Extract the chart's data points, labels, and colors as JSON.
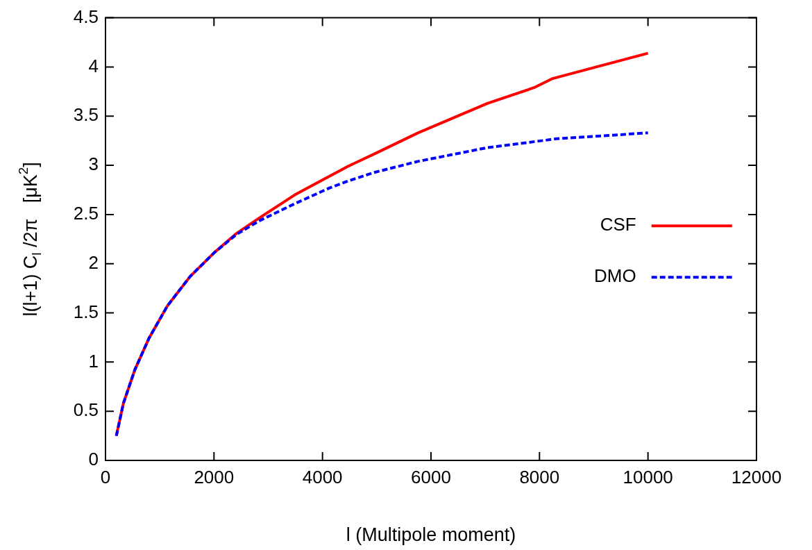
{
  "chart_data": {
    "type": "line",
    "xlabel": "l (Multipole moment)",
    "ylabel": "l(l+1) C$_{l}$ /2π   [μK$^{2}$]",
    "xlim": [
      0,
      12000
    ],
    "xticks": [
      0,
      2000,
      4000,
      6000,
      8000,
      10000,
      12000
    ],
    "ylim": [
      0,
      4.5
    ],
    "yticks": [
      0,
      0.5,
      1,
      1.5,
      2,
      2.5,
      3,
      3.5,
      4,
      4.5
    ],
    "grid": false,
    "legend": "right",
    "marker": "none",
    "series": [
      {
        "name": "CSF",
        "color": "#ff0000",
        "line_style": "solid",
        "x": [
          200,
          330,
          540,
          800,
          1140,
          1560,
          2000,
          2420,
          2850,
          3490,
          4130,
          4470,
          4970,
          5760,
          7040,
          7900,
          8230,
          9180,
          10000
        ],
        "values": [
          0.25,
          0.58,
          0.92,
          1.24,
          1.57,
          1.87,
          2.11,
          2.31,
          2.47,
          2.7,
          2.89,
          2.99,
          3.12,
          3.33,
          3.63,
          3.79,
          3.88,
          4.02,
          4.14
        ]
      },
      {
        "name": "DMO",
        "color": "#0000ff",
        "line_style": "dashed",
        "x": [
          200,
          330,
          540,
          800,
          1140,
          1560,
          2000,
          2420,
          2850,
          3490,
          4130,
          4470,
          4970,
          5760,
          7040,
          8320,
          10000
        ],
        "values": [
          0.25,
          0.58,
          0.92,
          1.24,
          1.57,
          1.87,
          2.11,
          2.3,
          2.44,
          2.61,
          2.77,
          2.84,
          2.93,
          3.04,
          3.18,
          3.27,
          3.33
        ]
      }
    ]
  }
}
